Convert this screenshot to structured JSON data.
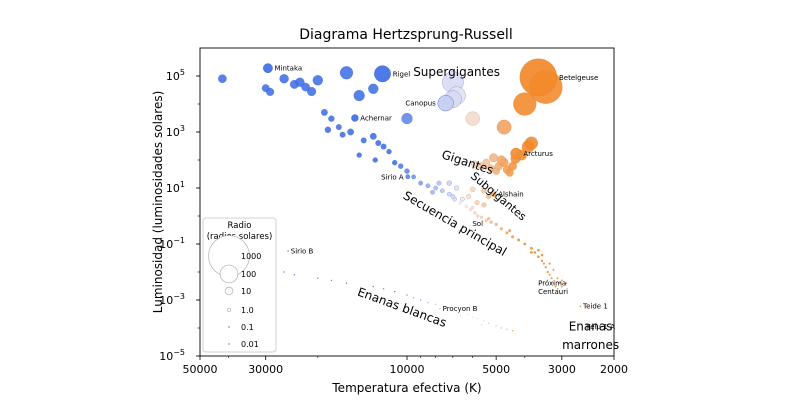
{
  "chart_data": {
    "type": "scatter",
    "title": "Diagrama Hertzsprung-Russell",
    "xlabel": "Temperatura efectiva (K)",
    "ylabel": "Luminosidad (luminosidades solares)",
    "x_scale": "log",
    "x_reversed": true,
    "y_scale": "log",
    "xlim": [
      50000,
      2000
    ],
    "ylim": [
      1e-05,
      1000000
    ],
    "x_ticks": [
      {
        "value": 50000,
        "label": "50000"
      },
      {
        "value": 30000,
        "label": "30000"
      },
      {
        "value": 10000,
        "label": "10000"
      },
      {
        "value": 5000,
        "label": "5000"
      },
      {
        "value": 3000,
        "label": "3000"
      },
      {
        "value": 2000,
        "label": "2000"
      }
    ],
    "y_ticks": [
      {
        "value": 1e-05,
        "label": "10",
        "exp": "−5"
      },
      {
        "value": 0.001,
        "label": "10",
        "exp": "−3"
      },
      {
        "value": 0.1,
        "label": "10",
        "exp": "−1"
      },
      {
        "value": 10,
        "label": "10",
        "exp": "1"
      },
      {
        "value": 1000,
        "label": "10",
        "exp": "3"
      },
      {
        "value": 100000,
        "label": "10",
        "exp": "5"
      }
    ],
    "color_scale": {
      "hot": "#3f6fe6",
      "mid": "#f0ecf4",
      "cool": "#f2892a",
      "brown": "#b5651d"
    },
    "stars": [
      {
        "name": "Mintaka",
        "T": 29500,
        "L": 190000,
        "R": 16.5
      },
      {
        "name": "Rigel",
        "T": 12100,
        "L": 120000,
        "R": 78.9
      },
      {
        "name": "Betelgeuse",
        "T": 3600,
        "L": 90000,
        "R": 764
      },
      {
        "name": "Canopus",
        "T": 7400,
        "L": 10700,
        "R": 71
      },
      {
        "name": "Achernar",
        "T": 15000,
        "L": 3150,
        "R": 7.3
      },
      {
        "name": "Arcturus",
        "T": 4286,
        "L": 170,
        "R": 25.4
      },
      {
        "name": "Sirio A",
        "T": 9940,
        "L": 25.4,
        "R": 1.71
      },
      {
        "name": "Alshain",
        "T": 5100,
        "L": 6,
        "R": 3.2
      },
      {
        "name": "Sol",
        "T": 5772,
        "L": 1,
        "R": 1
      },
      {
        "name": "Sirio B",
        "T": 25200,
        "L": 0.056,
        "R": 0.0084
      },
      {
        "name": "Próxima Centauri",
        "T": 3042,
        "L": 0.0017,
        "R": 0.154
      },
      {
        "name": "Teide 1",
        "T": 2600,
        "L": 0.0006,
        "R": 0.1
      },
      {
        "name": "Procyon B",
        "T": 7740,
        "L": 0.00049,
        "R": 0.012
      },
      {
        "name": "Kelu-1 A",
        "T": 2000,
        "L": 0.00012,
        "R": 0.1
      }
    ],
    "background_stars": [
      {
        "T": 42000,
        "L": 80000,
        "R": 12
      },
      {
        "T": 26000,
        "L": 80000,
        "R": 15
      },
      {
        "T": 24000,
        "L": 50000,
        "R": 13
      },
      {
        "T": 22000,
        "L": 40000,
        "R": 12
      },
      {
        "T": 21000,
        "L": 28000,
        "R": 14
      },
      {
        "T": 23000,
        "L": 60000,
        "R": 15
      },
      {
        "T": 29000,
        "L": 27000,
        "R": 10
      },
      {
        "T": 30000,
        "L": 37000,
        "R": 9
      },
      {
        "T": 20000,
        "L": 70000,
        "R": 20
      },
      {
        "T": 16000,
        "L": 130000,
        "R": 40
      },
      {
        "T": 14500,
        "L": 20000,
        "R": 25
      },
      {
        "T": 13000,
        "L": 35000,
        "R": 20
      },
      {
        "T": 10000,
        "L": 3000,
        "R": 25
      },
      {
        "T": 19000,
        "L": 5000,
        "R": 6
      },
      {
        "T": 18000,
        "L": 3000,
        "R": 5
      },
      {
        "T": 17000,
        "L": 1500,
        "R": 4
      },
      {
        "T": 18500,
        "L": 1200,
        "R": 5
      },
      {
        "T": 16500,
        "L": 800,
        "R": 4
      },
      {
        "T": 15500,
        "L": 1000,
        "R": 6
      },
      {
        "T": 14000,
        "L": 500,
        "R": 4
      },
      {
        "T": 13000,
        "L": 700,
        "R": 6
      },
      {
        "T": 12500,
        "L": 400,
        "R": 4
      },
      {
        "T": 12000,
        "L": 300,
        "R": 4
      },
      {
        "T": 11500,
        "L": 200,
        "R": 3
      },
      {
        "T": 14500,
        "L": 150,
        "R": 3
      },
      {
        "T": 12800,
        "L": 100,
        "R": 3
      },
      {
        "T": 11000,
        "L": 80,
        "R": 3
      },
      {
        "T": 10500,
        "L": 60,
        "R": 3
      },
      {
        "T": 10000,
        "L": 40,
        "R": 3
      },
      {
        "T": 9500,
        "L": 25,
        "R": 2
      },
      {
        "T": 9000,
        "L": 15,
        "R": 2
      },
      {
        "T": 8500,
        "L": 12,
        "R": 2
      },
      {
        "T": 8000,
        "L": 10,
        "R": 2
      },
      {
        "T": 7600,
        "L": 8,
        "R": 1.8
      },
      {
        "T": 7200,
        "L": 6,
        "R": 1.7
      },
      {
        "T": 6900,
        "L": 4,
        "R": 1.6
      },
      {
        "T": 6600,
        "L": 3,
        "R": 1.5
      },
      {
        "T": 6300,
        "L": 2.2,
        "R": 1.4
      },
      {
        "T": 6100,
        "L": 1.7,
        "R": 1.3
      },
      {
        "T": 5900,
        "L": 1.3,
        "R": 1.2
      },
      {
        "T": 5600,
        "L": 0.9,
        "R": 1
      },
      {
        "T": 5400,
        "L": 0.7,
        "R": 0.95
      },
      {
        "T": 5200,
        "L": 0.6,
        "R": 0.9
      },
      {
        "T": 5000,
        "L": 0.5,
        "R": 0.85
      },
      {
        "T": 4800,
        "L": 0.35,
        "R": 0.8
      },
      {
        "T": 4600,
        "L": 0.25,
        "R": 0.75
      },
      {
        "T": 4400,
        "L": 0.18,
        "R": 0.7
      },
      {
        "T": 4200,
        "L": 0.14,
        "R": 0.65
      },
      {
        "T": 4000,
        "L": 0.1,
        "R": 0.6
      },
      {
        "T": 3800,
        "L": 0.07,
        "R": 0.55
      },
      {
        "T": 3700,
        "L": 0.05,
        "R": 0.5
      },
      {
        "T": 3600,
        "L": 0.035,
        "R": 0.45
      },
      {
        "T": 3500,
        "L": 0.025,
        "R": 0.4
      },
      {
        "T": 3450,
        "L": 0.02,
        "R": 0.35
      },
      {
        "T": 3400,
        "L": 0.015,
        "R": 0.3
      },
      {
        "T": 3350,
        "L": 0.01,
        "R": 0.3
      },
      {
        "T": 3300,
        "L": 0.008,
        "R": 0.25
      },
      {
        "T": 3250,
        "L": 0.006,
        "R": 0.22
      },
      {
        "T": 3200,
        "L": 0.004,
        "R": 0.2
      },
      {
        "T": 3150,
        "L": 0.003,
        "R": 0.18
      },
      {
        "T": 3100,
        "L": 0.0025,
        "R": 0.17
      },
      {
        "T": 3300,
        "L": 0.02,
        "R": 0.3
      },
      {
        "T": 3200,
        "L": 0.012,
        "R": 0.25
      },
      {
        "T": 3100,
        "L": 0.006,
        "R": 0.2
      },
      {
        "T": 3000,
        "L": 0.003,
        "R": 0.16
      },
      {
        "T": 3000,
        "L": 0.005,
        "R": 0.18
      },
      {
        "T": 3050,
        "L": 0.004,
        "R": 0.17
      },
      {
        "T": 2900,
        "L": 0.004,
        "R": 0.15
      },
      {
        "T": 3500,
        "L": 0.04,
        "R": 0.45
      },
      {
        "T": 3600,
        "L": 0.06,
        "R": 0.5
      },
      {
        "T": 3800,
        "L": 0.05,
        "R": 0.55
      },
      {
        "T": 4500,
        "L": 0.3,
        "R": 0.75
      },
      {
        "T": 5300,
        "L": 0.8,
        "R": 0.9
      },
      {
        "T": 6000,
        "L": 2,
        "R": 1.3
      },
      {
        "T": 7000,
        "L": 5,
        "R": 1.6
      },
      {
        "T": 6500,
        "L": 4,
        "R": 1.7
      },
      {
        "T": 7800,
        "L": 15,
        "R": 2
      },
      {
        "T": 8200,
        "L": 7,
        "R": 1.7
      },
      {
        "T": 6200,
        "L": 5,
        "R": 2.4
      },
      {
        "T": 5800,
        "L": 3,
        "R": 2.2
      },
      {
        "T": 5500,
        "L": 2.5,
        "R": 2.4
      },
      {
        "T": 5300,
        "L": 5,
        "R": 2.8
      },
      {
        "T": 5500,
        "L": 8,
        "R": 3
      },
      {
        "T": 6800,
        "L": 10,
        "R": 2.5
      },
      {
        "T": 7200,
        "L": 15,
        "R": 2.6
      },
      {
        "T": 6000,
        "L": 9,
        "R": 3
      },
      {
        "T": 5900,
        "L": 70,
        "R": 8
      },
      {
        "T": 5600,
        "L": 60,
        "R": 8
      },
      {
        "T": 5400,
        "L": 80,
        "R": 9
      },
      {
        "T": 5200,
        "L": 50,
        "R": 8
      },
      {
        "T": 5000,
        "L": 40,
        "R": 8
      },
      {
        "T": 4900,
        "L": 60,
        "R": 10
      },
      {
        "T": 4700,
        "L": 80,
        "R": 13
      },
      {
        "T": 4600,
        "L": 45,
        "R": 10
      },
      {
        "T": 4500,
        "L": 35,
        "R": 9
      },
      {
        "T": 4800,
        "L": 100,
        "R": 14
      },
      {
        "T": 5100,
        "L": 120,
        "R": 13
      },
      {
        "T": 4400,
        "L": 60,
        "R": 12
      },
      {
        "T": 4300,
        "L": 110,
        "R": 18
      },
      {
        "T": 4100,
        "L": 150,
        "R": 22
      },
      {
        "T": 3900,
        "L": 300,
        "R": 35
      },
      {
        "T": 3800,
        "L": 400,
        "R": 40
      },
      {
        "T": 4700,
        "L": 1500,
        "R": 55
      },
      {
        "T": 4000,
        "L": 10000,
        "R": 200
      },
      {
        "T": 3400,
        "L": 40000,
        "R": 560
      },
      {
        "T": 6000,
        "L": 3000,
        "R": 50
      },
      {
        "T": 7000,
        "L": 60000,
        "R": 160
      },
      {
        "T": 6800,
        "L": 20000,
        "R": 100
      },
      {
        "T": 7000,
        "L": 15000,
        "R": 90
      },
      {
        "T": 26000,
        "L": 0.01,
        "R": 0.01
      },
      {
        "T": 24000,
        "L": 0.008,
        "R": 0.01
      },
      {
        "T": 20000,
        "L": 0.006,
        "R": 0.01
      },
      {
        "T": 18000,
        "L": 0.005,
        "R": 0.01
      },
      {
        "T": 16000,
        "L": 0.004,
        "R": 0.01
      },
      {
        "T": 13000,
        "L": 0.003,
        "R": 0.01
      },
      {
        "T": 12000,
        "L": 0.0025,
        "R": 0.01
      },
      {
        "T": 11000,
        "L": 0.002,
        "R": 0.01
      },
      {
        "T": 10000,
        "L": 0.0015,
        "R": 0.01
      },
      {
        "T": 9500,
        "L": 0.0012,
        "R": 0.01
      },
      {
        "T": 9000,
        "L": 0.001,
        "R": 0.01
      },
      {
        "T": 8500,
        "L": 0.0008,
        "R": 0.01
      },
      {
        "T": 8000,
        "L": 0.0007,
        "R": 0.01
      },
      {
        "T": 7500,
        "L": 0.0006,
        "R": 0.01
      },
      {
        "T": 7000,
        "L": 0.0005,
        "R": 0.01
      },
      {
        "T": 6800,
        "L": 0.0004,
        "R": 0.01
      },
      {
        "T": 6500,
        "L": 0.00035,
        "R": 0.01
      },
      {
        "T": 6200,
        "L": 0.0003,
        "R": 0.01
      },
      {
        "T": 6000,
        "L": 0.00025,
        "R": 0.01
      },
      {
        "T": 5800,
        "L": 0.00022,
        "R": 0.01
      },
      {
        "T": 5500,
        "L": 0.00018,
        "R": 0.01
      },
      {
        "T": 5300,
        "L": 0.00015,
        "R": 0.01
      },
      {
        "T": 5000,
        "L": 0.00012,
        "R": 0.01
      },
      {
        "T": 4800,
        "L": 0.0001,
        "R": 0.01
      },
      {
        "T": 4600,
        "L": 9e-05,
        "R": 0.01
      },
      {
        "T": 4400,
        "L": 8e-05,
        "R": 0.01
      },
      {
        "T": 6600,
        "L": 0.00028,
        "R": 0.01
      },
      {
        "T": 5600,
        "L": 0.00013,
        "R": 0.01
      }
    ],
    "regions": [
      {
        "text": "Supergigantes",
        "T": 6800,
        "L": 100000,
        "angle": 0,
        "size": 12
      },
      {
        "text": "Gigantes",
        "T": 6300,
        "L": 60,
        "angle": 18,
        "size": 12
      },
      {
        "text": "Subgigantes",
        "T": 5000,
        "L": 4,
        "angle": 40,
        "size": 11
      },
      {
        "text": "Secuencia principal",
        "T": 7000,
        "L": 0.4,
        "angle": 30,
        "size": 12
      },
      {
        "text": "Enanas blancas",
        "T": 10500,
        "L": 0.0004,
        "angle": 20,
        "size": 12
      },
      {
        "text": "Enanas",
        "T": 2400,
        "L": 8e-05,
        "angle": 0,
        "size": 12
      },
      {
        "text": "marrones",
        "T": 2400,
        "L": 1.8e-05,
        "angle": 0,
        "size": 12
      }
    ],
    "legend": {
      "title_line1": "Radio",
      "title_line2": "(radios solares)",
      "entries": [
        {
          "label": "1000",
          "R": 1000
        },
        {
          "label": "100",
          "R": 100
        },
        {
          "label": "10",
          "R": 10
        },
        {
          "label": "1.0",
          "R": 1
        },
        {
          "label": "0.1",
          "R": 0.1
        },
        {
          "label": "0.01",
          "R": 0.01
        }
      ]
    }
  }
}
